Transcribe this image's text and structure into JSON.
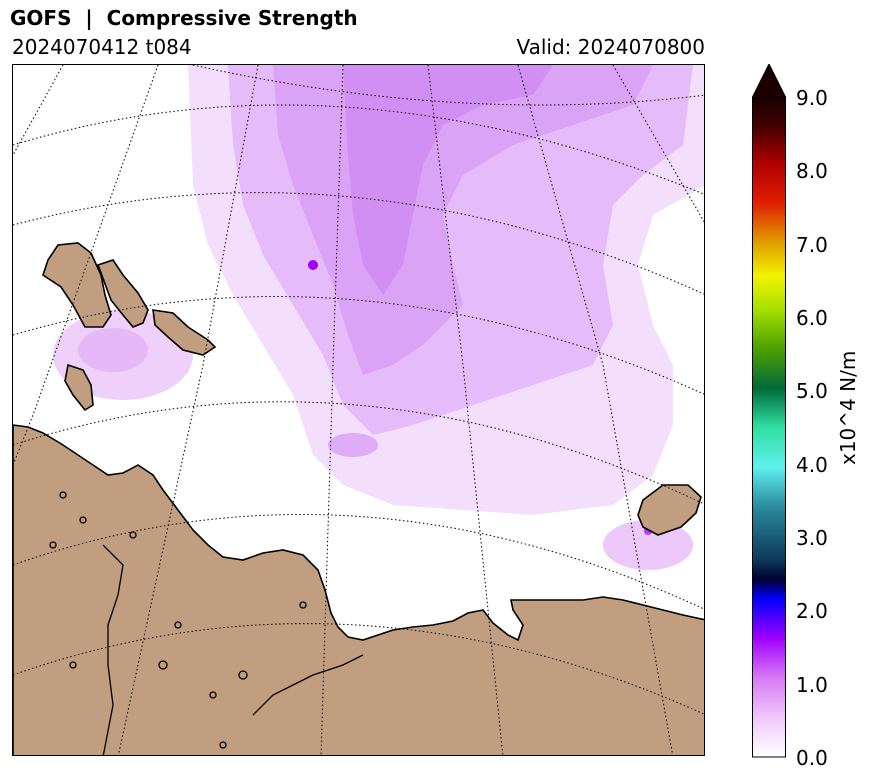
{
  "header": {
    "title": "GOFS  |  Compressive Strength",
    "run": "2024070412 t084",
    "valid": "Valid: 2024070800"
  },
  "colorbar": {
    "label": "x10^4 N/m",
    "ticks": [
      "0.0",
      "1.0",
      "2.0",
      "3.0",
      "4.0",
      "5.0",
      "6.0",
      "7.0",
      "8.0",
      "9.0"
    ],
    "min": 0,
    "max": 9,
    "extend": "max"
  },
  "colors": {
    "land": "#c19e7f",
    "ice_light": "#f0d6fb",
    "ice_mid": "#e3b2f8",
    "ice_strong": "#d89af5",
    "ice_peak": "#a100ff",
    "graticule": "#000000"
  }
}
